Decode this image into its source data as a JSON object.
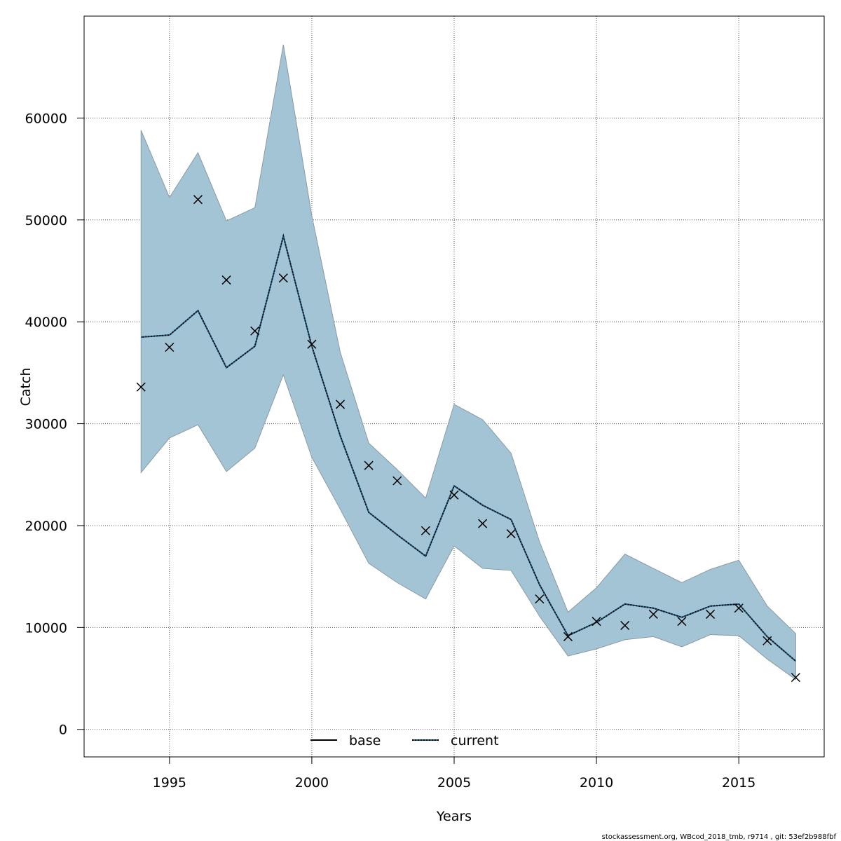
{
  "chart_data": {
    "type": "line",
    "title": "",
    "xlabel": "Years",
    "ylabel": "Catch",
    "xlim": [
      1992,
      2018
    ],
    "ylim": [
      -2700,
      70000
    ],
    "xticks": [
      1995,
      2000,
      2005,
      2010,
      2015
    ],
    "yticks": [
      0,
      10000,
      20000,
      30000,
      40000,
      50000,
      60000
    ],
    "grid": true,
    "legend_position": "bottom-center",
    "colors": {
      "band_fill": "#a3c4d5",
      "band_edge": "#8a9aa3",
      "current_line": "#0b5a82",
      "base_line": "#000000",
      "observed_marker": "#000000",
      "grid": "#555555"
    },
    "x": [
      1994,
      1995,
      1996,
      1997,
      1998,
      1999,
      2000,
      2001,
      2002,
      2003,
      2004,
      2005,
      2006,
      2007,
      2008,
      2009,
      2010,
      2011,
      2012,
      2013,
      2014,
      2015,
      2016,
      2017
    ],
    "series": [
      {
        "name": "base",
        "style": "solid",
        "values": [
          38500,
          38700,
          41100,
          35500,
          37600,
          48400,
          37600,
          28800,
          21300,
          19100,
          17000,
          23900,
          22000,
          20600,
          14200,
          9200,
          10500,
          12300,
          11900,
          11000,
          12100,
          12300,
          9100,
          6700
        ]
      },
      {
        "name": "current",
        "style": "dotted",
        "values": [
          38500,
          38700,
          41100,
          35500,
          37600,
          48400,
          37600,
          28800,
          21300,
          19100,
          17000,
          23900,
          22000,
          20600,
          14200,
          9200,
          10500,
          12300,
          11900,
          11000,
          12100,
          12300,
          9100,
          6700
        ]
      }
    ],
    "confidence_band": {
      "upper": [
        58800,
        52200,
        56600,
        49900,
        51200,
        67200,
        50400,
        37000,
        28100,
        25500,
        22700,
        31900,
        30400,
        27100,
        18400,
        11500,
        13900,
        17200,
        15800,
        14400,
        15700,
        16600,
        12100,
        9400
      ],
      "lower": [
        25200,
        28600,
        29900,
        25300,
        27600,
        34800,
        26700,
        21600,
        16300,
        14400,
        12800,
        18000,
        15800,
        15600,
        11100,
        7200,
        7900,
        8800,
        9100,
        8100,
        9300,
        9200,
        6900,
        4900
      ]
    },
    "observed": [
      33600,
      37500,
      52000,
      44100,
      39100,
      44300,
      37800,
      31900,
      25900,
      24400,
      19500,
      23000,
      20200,
      19200,
      12800,
      9100,
      10600,
      10200,
      11300,
      10600,
      11300,
      11900,
      8700,
      5100
    ],
    "legend": [
      "base",
      "current"
    ],
    "footer": "stockassessment.org, WBcod_2018_tmb, r9714 , git: 53ef2b988fbf"
  }
}
